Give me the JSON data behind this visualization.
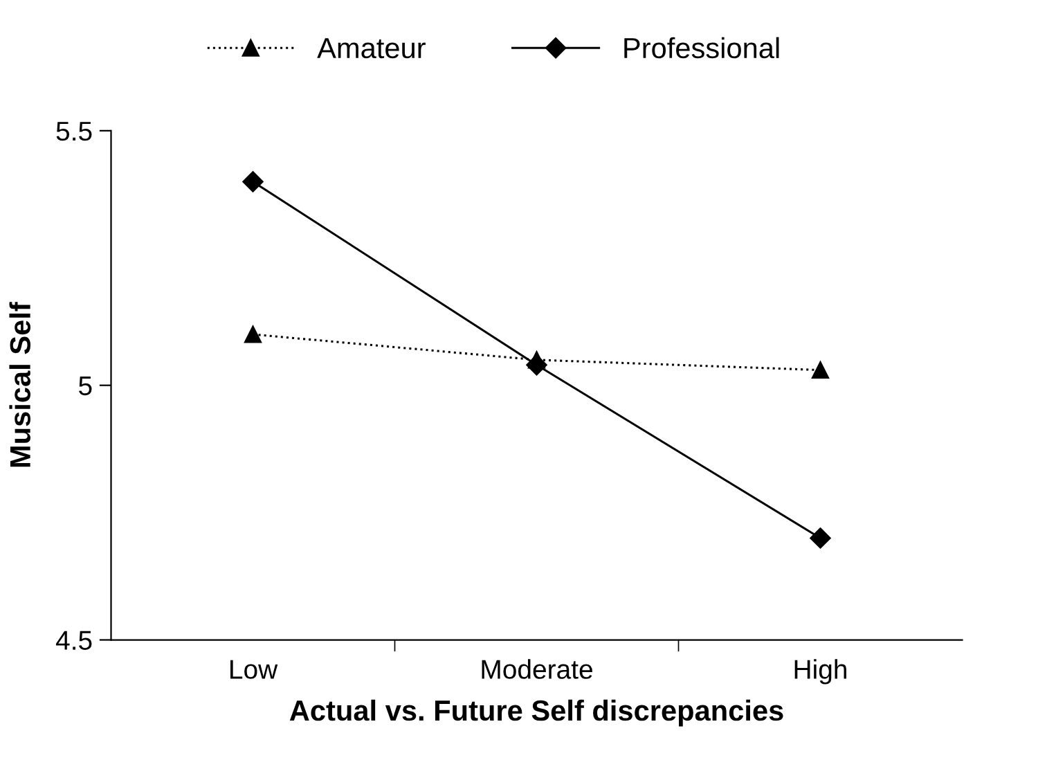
{
  "chart_data": {
    "type": "line",
    "xlabel": "Actual vs. Future Self discrepancies",
    "ylabel": "Musical Self",
    "categories": [
      "Low",
      "Moderate",
      "High"
    ],
    "series": [
      {
        "name": "Amateur",
        "color": "#000000",
        "marker": "triangle",
        "line_style": "dotted",
        "values": [
          5.1,
          5.05,
          5.03
        ]
      },
      {
        "name": "Professional",
        "color": "#000000",
        "marker": "diamond",
        "line_style": "solid",
        "values": [
          5.4,
          5.04,
          4.7
        ]
      }
    ],
    "ylim": [
      4.5,
      5.5
    ],
    "yticks": [
      4.5,
      5,
      5.5
    ],
    "grid": false,
    "legend": "top"
  }
}
